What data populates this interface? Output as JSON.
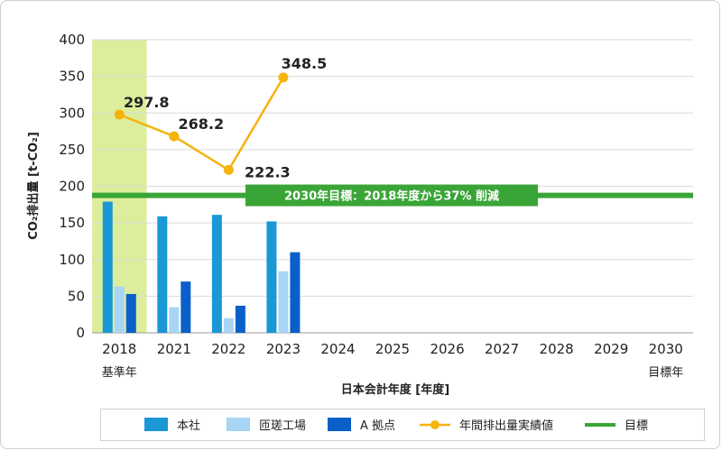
{
  "chart_data": {
    "type": "bar",
    "categories": [
      "2018",
      "2021",
      "2022",
      "2023",
      "2024",
      "2025",
      "2026",
      "2027",
      "2028",
      "2029",
      "2030"
    ],
    "category_sublabels": {
      "2018": "基準年",
      "2030": "目標年"
    },
    "series": [
      {
        "name": "本社",
        "type": "bar",
        "color": "#1a98d5",
        "values": [
          179,
          159,
          161,
          152,
          null,
          null,
          null,
          null,
          null,
          null,
          null
        ]
      },
      {
        "name": "匝瑳工場",
        "type": "bar",
        "color": "#a8d5f5",
        "values": [
          63,
          35,
          20,
          84,
          null,
          null,
          null,
          null,
          null,
          null,
          null
        ]
      },
      {
        "name": "A 拠点",
        "type": "bar",
        "color": "#0a5fc8",
        "values": [
          53,
          70,
          37,
          110,
          null,
          null,
          null,
          null,
          null,
          null,
          null
        ]
      },
      {
        "name": "年間排出量実績値",
        "type": "line",
        "color": "#f5b30d",
        "values": [
          297.8,
          268.2,
          222.3,
          348.5,
          null,
          null,
          null,
          null,
          null,
          null,
          null
        ]
      },
      {
        "name": "目標",
        "type": "hline",
        "color": "#3aa537",
        "value": 187.6
      }
    ],
    "target_annotation": "2030年目標：2018年度から37% 削減",
    "baseline_highlight": "2018",
    "xlabel": "日本会計年度 [年度]",
    "ylabel": "CO₂排出量 [t-CO₂]",
    "ylim": [
      0,
      400
    ],
    "yticks": [
      0,
      50,
      100,
      150,
      200,
      250,
      300,
      350,
      400
    ],
    "grid": true,
    "legend_placement": "bottom"
  }
}
